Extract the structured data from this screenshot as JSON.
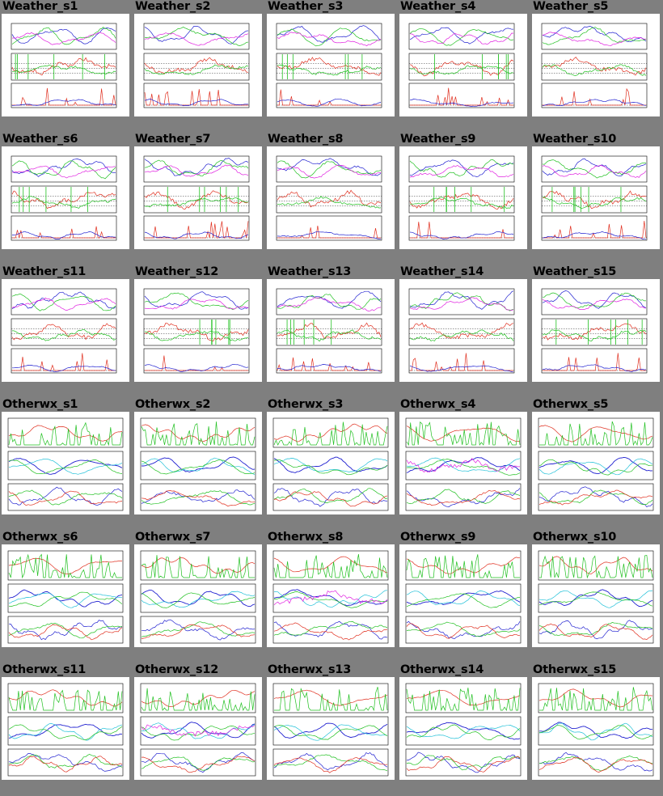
{
  "page": {
    "background": "#7f7f7f"
  },
  "grid": {
    "rows": [
      [
        "Weather_s1",
        "Weather_s2",
        "Weather_s3",
        "Weather_s4",
        "Weather_s5"
      ],
      [
        "Weather_s6",
        "Weather_s7",
        "Weather_s8",
        "Weather_s9",
        "Weather_s10"
      ],
      [
        "Weather_s11",
        "Weather_s12",
        "Weather_s13",
        "Weather_s14",
        "Weather_s15"
      ],
      [
        "Otherwx_s1",
        "Otherwx_s2",
        "Otherwx_s3",
        "Otherwx_s4",
        "Otherwx_s5"
      ],
      [
        "Otherwx_s6",
        "Otherwx_s7",
        "Otherwx_s8",
        "Otherwx_s9",
        "Otherwx_s10"
      ],
      [
        "Otherwx_s11",
        "Otherwx_s12",
        "Otherwx_s13",
        "Otherwx_s14",
        "Otherwx_s15"
      ]
    ]
  },
  "colors": {
    "series_red": "#e03020",
    "series_green": "#20c020",
    "series_blue": "#2020d0",
    "series_cyan": "#20c0d8",
    "series_magenta": "#e020e0",
    "series_violet": "#7040c0",
    "axis": "#000000"
  },
  "icons": {
    "thumbnail": "chart-thumbnail-icon"
  }
}
